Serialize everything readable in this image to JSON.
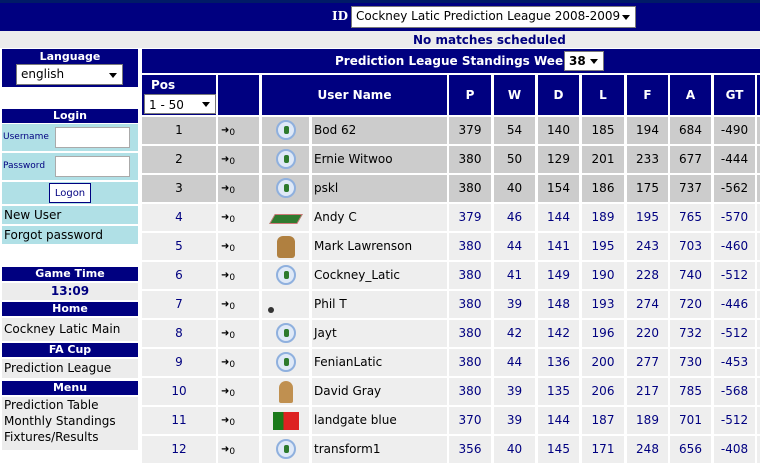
{
  "header": {
    "id_label": "ID",
    "league_select": "Cockney Latic Prediction League 2008-2009",
    "status": "No matches scheduled"
  },
  "sidebar": {
    "language": {
      "title": "Language",
      "value": "english"
    },
    "login": {
      "title": "Login",
      "username_label": "Username",
      "password_label": "Password",
      "logon": "Logon",
      "new_user": "New User",
      "forgot": "Forgot password"
    },
    "game_time": {
      "title": "Game Time",
      "value": "13:09"
    },
    "home": {
      "title": "Home",
      "items": [
        "Cockney Latic Main Site"
      ]
    },
    "fa_cup": {
      "title": "FA Cup",
      "items": [
        "Prediction League"
      ]
    },
    "menu": {
      "title": "Menu",
      "items": [
        "Prediction Table",
        "Monthly Standings",
        "Fixtures/Results"
      ]
    }
  },
  "standings": {
    "title": "Prediction League Standings Week",
    "week": "38",
    "pos_label": "Pos",
    "range": "1 - 50",
    "columns": [
      "User Name",
      "P",
      "W",
      "D",
      "L",
      "F",
      "A",
      "GT"
    ],
    "rows": [
      {
        "pos": "1",
        "move": "0",
        "avatar": "club-crest",
        "user": "Bod 62",
        "p": "379",
        "w": "54",
        "d": "140",
        "l": "185",
        "f": "194",
        "a": "684",
        "gt": "-490",
        "top": true
      },
      {
        "pos": "2",
        "move": "0",
        "avatar": "club-crest",
        "user": "Ernie Witwoo",
        "p": "380",
        "w": "50",
        "d": "129",
        "l": "201",
        "f": "233",
        "a": "677",
        "gt": "-444",
        "top": true
      },
      {
        "pos": "3",
        "move": "0",
        "avatar": "club-crest",
        "user": "pskl",
        "p": "380",
        "w": "40",
        "d": "154",
        "l": "186",
        "f": "175",
        "a": "737",
        "gt": "-562",
        "top": true
      },
      {
        "pos": "4",
        "move": "0",
        "avatar": "pitch",
        "user": "Andy C",
        "p": "379",
        "w": "46",
        "d": "144",
        "l": "189",
        "f": "195",
        "a": "765",
        "gt": "-570"
      },
      {
        "pos": "5",
        "move": "0",
        "avatar": "dog",
        "user": "Mark Lawrenson",
        "p": "380",
        "w": "44",
        "d": "141",
        "l": "195",
        "f": "243",
        "a": "703",
        "gt": "-460"
      },
      {
        "pos": "6",
        "move": "0",
        "avatar": "club-crest",
        "user": "Cockney_Latic",
        "p": "380",
        "w": "41",
        "d": "149",
        "l": "190",
        "f": "228",
        "a": "740",
        "gt": "-512"
      },
      {
        "pos": "7",
        "move": "0",
        "avatar": "ball",
        "user": "Phil T",
        "p": "380",
        "w": "39",
        "d": "148",
        "l": "193",
        "f": "274",
        "a": "720",
        "gt": "-446"
      },
      {
        "pos": "8",
        "move": "0",
        "avatar": "club-crest",
        "user": "Jayt",
        "p": "380",
        "w": "42",
        "d": "142",
        "l": "196",
        "f": "220",
        "a": "732",
        "gt": "-512"
      },
      {
        "pos": "9",
        "move": "0",
        "avatar": "club-crest",
        "user": "FenianLatic",
        "p": "380",
        "w": "44",
        "d": "136",
        "l": "200",
        "f": "277",
        "a": "730",
        "gt": "-453"
      },
      {
        "pos": "10",
        "move": "0",
        "avatar": "character",
        "user": "David Gray",
        "p": "380",
        "w": "39",
        "d": "135",
        "l": "206",
        "f": "217",
        "a": "785",
        "gt": "-568"
      },
      {
        "pos": "11",
        "move": "0",
        "avatar": "portugal-flag",
        "user": "landgate blue",
        "p": "370",
        "w": "39",
        "d": "144",
        "l": "187",
        "f": "189",
        "a": "701",
        "gt": "-512"
      },
      {
        "pos": "12",
        "move": "0",
        "avatar": "club-crest",
        "user": "transform1",
        "p": "356",
        "w": "40",
        "d": "145",
        "l": "171",
        "f": "248",
        "a": "656",
        "gt": "-408"
      }
    ]
  },
  "colors": {
    "navy": "#000080",
    "top_rows": "#cccccc",
    "rows": "#eeeeee",
    "login_bg": "#b0e0e6"
  }
}
